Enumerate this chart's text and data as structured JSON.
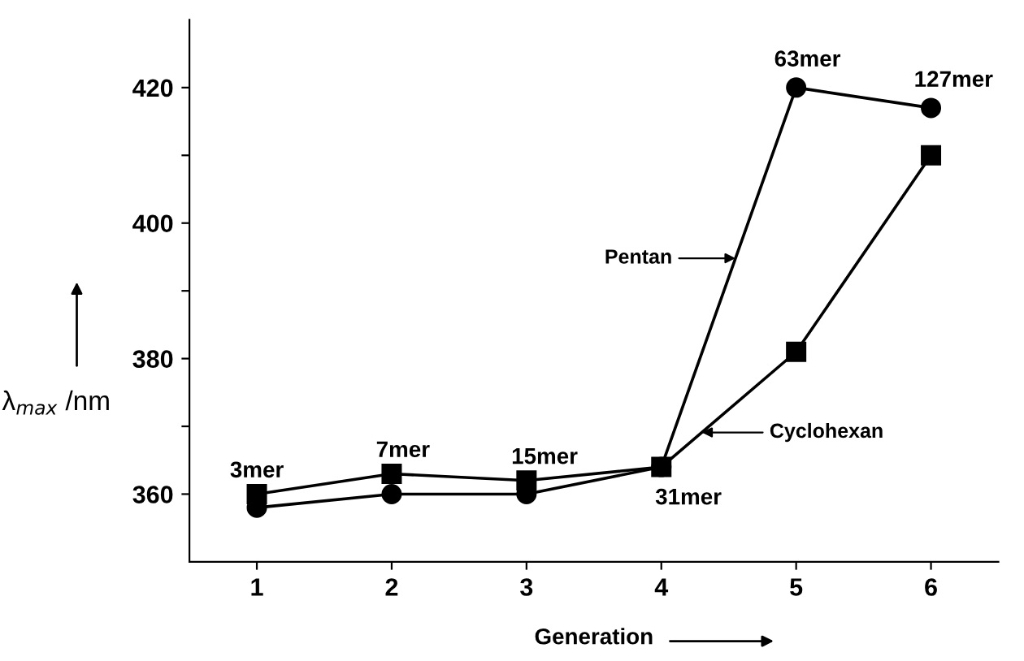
{
  "chart_data": {
    "type": "line",
    "xlabel": "Generation",
    "ylabel": "λ$_{max}$ /nm",
    "x": [
      1,
      2,
      3,
      4,
      5,
      6
    ],
    "series": [
      {
        "name": "Pentan",
        "color": "#000000",
        "marker": "circle",
        "values": [
          358,
          360,
          360,
          364,
          420,
          417
        ]
      },
      {
        "name": "Cyclohexan",
        "color": "#000000",
        "marker": "square",
        "values": [
          360,
          363,
          362,
          364,
          381,
          410
        ]
      }
    ],
    "xlim": [
      0.5,
      6.5
    ],
    "xticks": [
      1,
      2,
      3,
      4,
      5,
      6
    ],
    "ylim": [
      350,
      430
    ],
    "yticks": [
      360,
      {
        "value": 370,
        "label": null
      },
      380,
      {
        "value": 390,
        "label": null
      },
      400,
      {
        "value": 410,
        "label": null
      },
      420
    ],
    "grid": false,
    "annotations": [
      {
        "text": "3mer",
        "x": 1,
        "y": 360
      },
      {
        "text": "7mer",
        "x": 2,
        "y": 363
      },
      {
        "text": "15mer",
        "x": 3,
        "y": 362
      },
      {
        "text": "31mer",
        "x": 4,
        "y": 364
      },
      {
        "text": "63mer",
        "x": 5,
        "y": 420
      },
      {
        "text": "127mer",
        "x": 6,
        "y": 417
      }
    ]
  }
}
